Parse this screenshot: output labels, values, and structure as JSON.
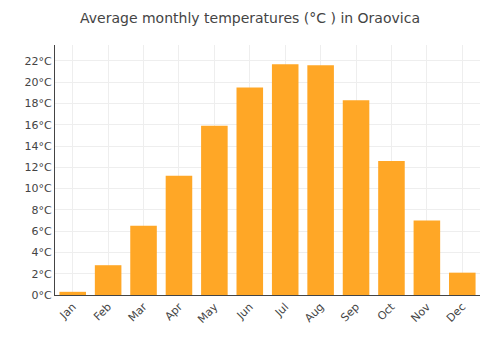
{
  "chart_data": {
    "type": "bar",
    "title": "Average monthly temperatures (°C ) in Oraovica",
    "categories": [
      "Jan",
      "Feb",
      "Mar",
      "Apr",
      "May",
      "Jun",
      "Jul",
      "Aug",
      "Sep",
      "Oct",
      "Nov",
      "Dec"
    ],
    "values": [
      0.3,
      2.8,
      6.5,
      11.2,
      15.9,
      19.5,
      21.7,
      21.6,
      18.3,
      12.6,
      7.0,
      2.1
    ],
    "color": "#FFA726",
    "ylim": [
      0,
      23.5
    ],
    "yticks": [
      {
        "value": 0,
        "label": "0°C"
      },
      {
        "value": 2,
        "label": "2°C"
      },
      {
        "value": 4,
        "label": "4°C"
      },
      {
        "value": 6,
        "label": "6°C"
      },
      {
        "value": 8,
        "label": "8°C"
      },
      {
        "value": 10,
        "label": "10°C"
      },
      {
        "value": 12,
        "label": "12°C"
      },
      {
        "value": 14,
        "label": "14°C"
      },
      {
        "value": 16,
        "label": "16°C"
      },
      {
        "value": 18,
        "label": "18°C"
      },
      {
        "value": 20,
        "label": "20°C"
      },
      {
        "value": 22,
        "label": "22°C"
      }
    ],
    "grid": true
  }
}
